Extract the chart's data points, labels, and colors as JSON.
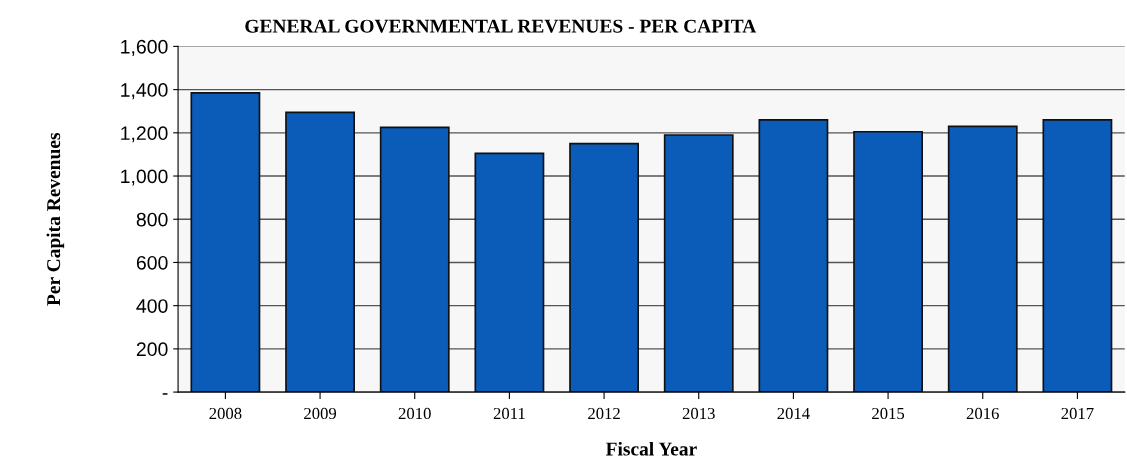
{
  "chart_data": {
    "type": "bar",
    "title": "GENERAL GOVERNMENTAL REVENUES - PER CAPITA",
    "xlabel": "Fiscal Year",
    "ylabel": "Per Capita Revenues",
    "categories": [
      "2008",
      "2009",
      "2010",
      "2011",
      "2012",
      "2013",
      "2014",
      "2015",
      "2016",
      "2017"
    ],
    "values": [
      1385,
      1295,
      1225,
      1105,
      1150,
      1190,
      1260,
      1205,
      1230,
      1260
    ],
    "color": "#0a5cb8",
    "ylim": [
      0,
      1600
    ],
    "yticks": [
      {
        "value": 0,
        "label": "-"
      },
      {
        "value": 200,
        "label": "200"
      },
      {
        "value": 400,
        "label": "400"
      },
      {
        "value": 600,
        "label": "600"
      },
      {
        "value": 800,
        "label": "800"
      },
      {
        "value": 1000,
        "label": "1,000"
      },
      {
        "value": 1200,
        "label": "1,200"
      },
      {
        "value": 1400,
        "label": "1,400"
      },
      {
        "value": 1600,
        "label": "1,600"
      }
    ],
    "grid": "y"
  }
}
